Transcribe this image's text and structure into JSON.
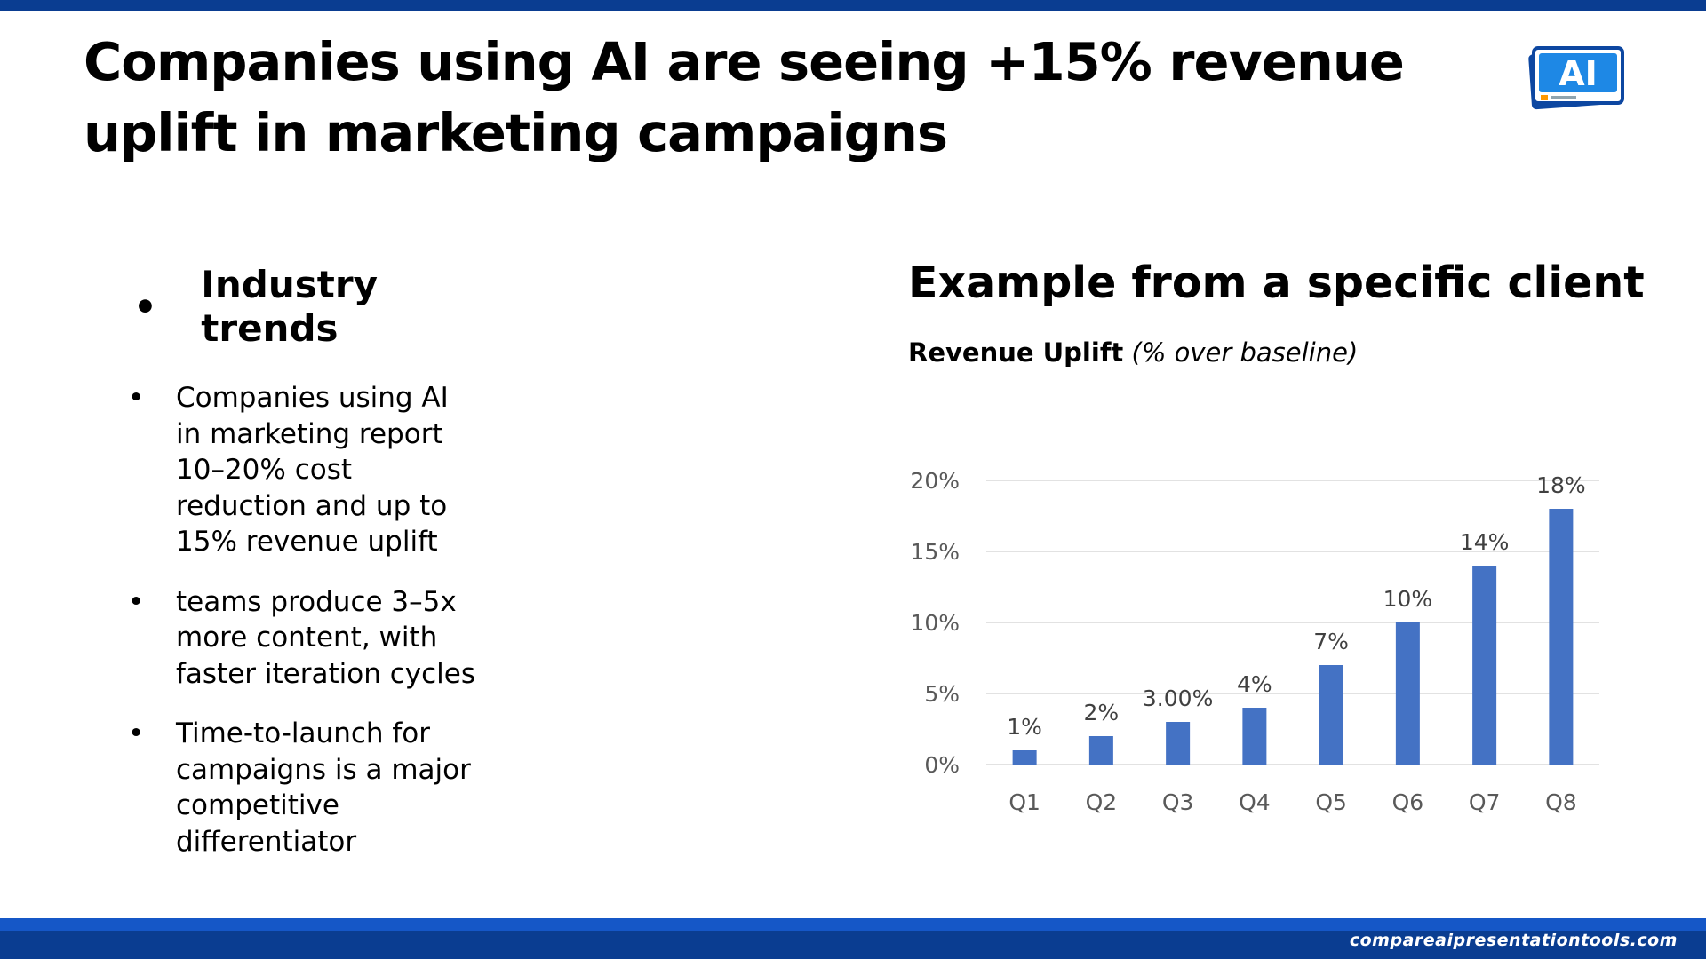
{
  "slide": {
    "title": "Companies using AI are seeing +15% revenue uplift in marketing campaigns",
    "logo_text": "AI",
    "footer_url": "compareaipresentationtools.com"
  },
  "left": {
    "heading": "Industry trends",
    "bullets": [
      "Companies using AI in marketing report 10–20% cost reduction and up to 15% revenue uplift",
      "teams produce 3–5x more content, with faster iteration cycles",
      "Time-to-launch for campaigns is a major competitive differentiator"
    ]
  },
  "right": {
    "heading": "Example from a specific client",
    "subtitle_bold": "Revenue Uplift",
    "subtitle_italic": "(% over baseline)"
  },
  "colors": {
    "bar": "#4472c4",
    "gridline": "#d9d9d9",
    "axis_text": "#595959",
    "brand_dark": "#0a3d91",
    "brand_light": "#1557c7"
  },
  "chart_data": {
    "type": "bar",
    "title": "Revenue Uplift (% over baseline)",
    "categories": [
      "Q1",
      "Q2",
      "Q3",
      "Q4",
      "Q5",
      "Q6",
      "Q7",
      "Q8"
    ],
    "values": [
      1,
      2,
      3,
      4,
      7,
      10,
      14,
      18
    ],
    "data_labels": [
      "1%",
      "2%",
      "3.00%",
      "4%",
      "7%",
      "10%",
      "14%",
      "18%"
    ],
    "ylim": [
      0,
      20
    ],
    "yticks": [
      0,
      5,
      10,
      15,
      20
    ],
    "ytick_labels": [
      "0%",
      "5%",
      "10%",
      "15%",
      "20%"
    ],
    "xlabel": "",
    "ylabel": "",
    "grid": true,
    "legend": "none"
  }
}
